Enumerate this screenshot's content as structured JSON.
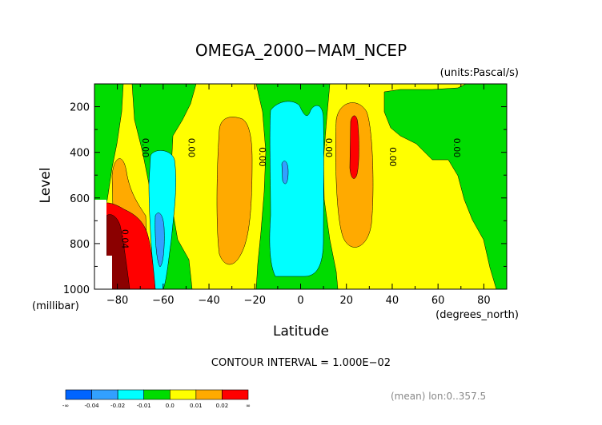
{
  "chart_data": {
    "type": "heatmap",
    "title": "OMEGA_2000−MAM_NCEP",
    "units_label": "(units:Pascal/s)",
    "xlabel": "Latitude",
    "x_units_label": "(degrees_north)",
    "ylabel": "Level",
    "y_units_label": "(millibar)",
    "xlim": [
      -90,
      90
    ],
    "ylim": [
      1000,
      100
    ],
    "x_ticks": [
      -80,
      -60,
      -40,
      -20,
      0,
      20,
      40,
      60,
      80
    ],
    "x_tick_labels": [
      "−80",
      "−60",
      "−40",
      "−20",
      "0",
      "20",
      "40",
      "60",
      "80"
    ],
    "y_ticks": [
      200,
      400,
      600,
      800,
      1000
    ],
    "y_tick_labels": [
      "200",
      "400",
      "600",
      "800",
      "1000"
    ],
    "grid": false,
    "contour_interval_text": "CONTOUR INTERVAL = 1.000E−02",
    "footer_note": "(mean) lon:0..357.5",
    "contour_labels": [
      {
        "lat": -69,
        "lev": 380,
        "text": "0.00"
      },
      {
        "lat": -49,
        "lev": 380,
        "text": "0.00"
      },
      {
        "lat": -18,
        "lev": 420,
        "text": "0.00"
      },
      {
        "lat": 11,
        "lev": 380,
        "text": "0.00"
      },
      {
        "lat": 39,
        "lev": 420,
        "text": "0.00"
      },
      {
        "lat": 67,
        "lev": 380,
        "text": "0.00"
      },
      {
        "lat": -78,
        "lev": 780,
        "text": "0.04"
      }
    ],
    "colorbar": {
      "boundaries": [
        "-∞",
        "-0.04",
        "-0.02",
        "-0.01",
        "0.0",
        "0.01",
        "0.02",
        "∞"
      ],
      "colors": [
        "#0064ff",
        "#32a0ff",
        "#00ffff",
        "#00dc00",
        "#ffff00",
        "#ffaa00",
        "#ff0000"
      ]
    },
    "fill_colors": {
      "very_negative": "#0064ff",
      "negative_2": "#32a0ff",
      "negative_1": "#00ffff",
      "near_zero_neg": "#00dc00",
      "near_zero_pos": "#ffff00",
      "positive_1": "#ffaa00",
      "positive_2": "#ff0000",
      "very_positive": "#8b0000"
    }
  }
}
